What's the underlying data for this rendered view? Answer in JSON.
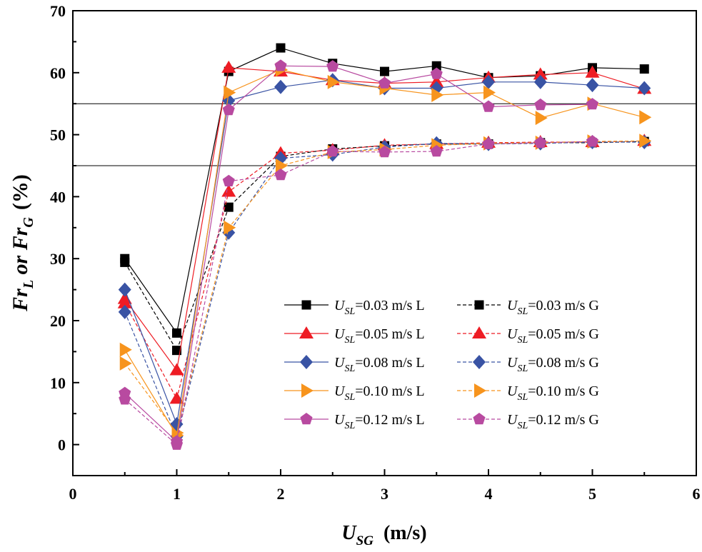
{
  "chart_data": {
    "type": "line",
    "xlabel": {
      "main": "U",
      "sub": "SG",
      "unit": "(m/s)"
    },
    "ylabel": {
      "p1": "Fr",
      "s1": "L",
      "mid": " or ",
      "p2": "Fr",
      "s2": "G",
      "unit": "(%)"
    },
    "xlim": [
      0,
      6
    ],
    "ylim": [
      -5,
      70
    ],
    "xticks": [
      "0",
      "1",
      "2",
      "3",
      "4",
      "5",
      "6"
    ],
    "yticks": [
      "0",
      "10",
      "20",
      "30",
      "40",
      "50",
      "60",
      "70"
    ],
    "x": [
      0.5,
      1.0,
      1.5,
      2.0,
      2.5,
      3.0,
      3.5,
      4.0,
      4.5,
      5.0,
      5.5
    ],
    "reference_lines": [
      55,
      45
    ],
    "series": [
      {
        "name": "=0.03 m/s L",
        "sub": "SL",
        "color": "#000000",
        "marker": "square",
        "dash": false,
        "values": [
          30.0,
          18.0,
          60.2,
          64.0,
          61.5,
          60.2,
          61.1,
          59.2,
          59.5,
          60.8,
          60.6
        ]
      },
      {
        "name": "=0.05 m/s L",
        "sub": "SL",
        "color": "#ee1c24",
        "marker": "triangle-up",
        "dash": false,
        "values": [
          23.5,
          12.0,
          60.8,
          60.2,
          58.8,
          58.3,
          58.5,
          59.2,
          59.7,
          60.0,
          57.4
        ]
      },
      {
        "name": "=0.08 m/s L",
        "sub": "SL",
        "color": "#3953a4",
        "marker": "diamond",
        "dash": false,
        "values": [
          25.0,
          3.3,
          55.5,
          57.7,
          58.8,
          57.5,
          57.5,
          58.5,
          58.5,
          58.0,
          57.5
        ]
      },
      {
        "name": "=0.10 m/s L",
        "sub": "SL",
        "color": "#f7941d",
        "marker": "triangle-right",
        "dash": false,
        "values": [
          15.3,
          1.5,
          56.8,
          60.5,
          58.5,
          57.5,
          56.4,
          56.8,
          52.7,
          55.0,
          52.8
        ]
      },
      {
        "name": "=0.12 m/s L",
        "sub": "SL",
        "color": "#b84aa0",
        "marker": "pentagon",
        "dash": false,
        "values": [
          8.3,
          0.5,
          54.0,
          61.1,
          61.0,
          58.3,
          59.8,
          54.5,
          54.8,
          54.9,
          null
        ]
      },
      {
        "name": "=0.03 m/s G",
        "sub": "SL",
        "color": "#000000",
        "marker": "square",
        "dash": true,
        "values": [
          29.4,
          15.2,
          38.3,
          46.5,
          47.7,
          48.2,
          48.5,
          48.5,
          48.7,
          48.7,
          48.9
        ]
      },
      {
        "name": "=0.05 m/s G",
        "sub": "SL",
        "color": "#ee1c24",
        "marker": "triangle-up",
        "dash": true,
        "values": [
          22.8,
          7.4,
          40.8,
          47.0,
          47.5,
          48.3,
          48.5,
          48.7,
          48.8,
          48.8,
          49.0
        ]
      },
      {
        "name": "=0.08 m/s G",
        "sub": "SL",
        "color": "#3953a4",
        "marker": "diamond",
        "dash": true,
        "values": [
          21.4,
          1.3,
          34.2,
          46.2,
          46.8,
          48.0,
          48.6,
          48.5,
          48.6,
          48.8,
          48.8
        ]
      },
      {
        "name": "=0.10 m/s G",
        "sub": "SL",
        "color": "#f7941d",
        "marker": "triangle-right",
        "dash": true,
        "values": [
          13.1,
          1.9,
          35.0,
          45.0,
          47.2,
          47.6,
          48.3,
          48.6,
          48.7,
          48.9,
          49.0
        ]
      },
      {
        "name": "=0.12 m/s G",
        "sub": "SL",
        "color": "#b84aa0",
        "marker": "pentagon",
        "dash": true,
        "values": [
          7.3,
          0.0,
          42.5,
          43.5,
          47.3,
          47.2,
          47.3,
          48.5,
          48.7,
          48.9,
          null
        ]
      }
    ]
  }
}
